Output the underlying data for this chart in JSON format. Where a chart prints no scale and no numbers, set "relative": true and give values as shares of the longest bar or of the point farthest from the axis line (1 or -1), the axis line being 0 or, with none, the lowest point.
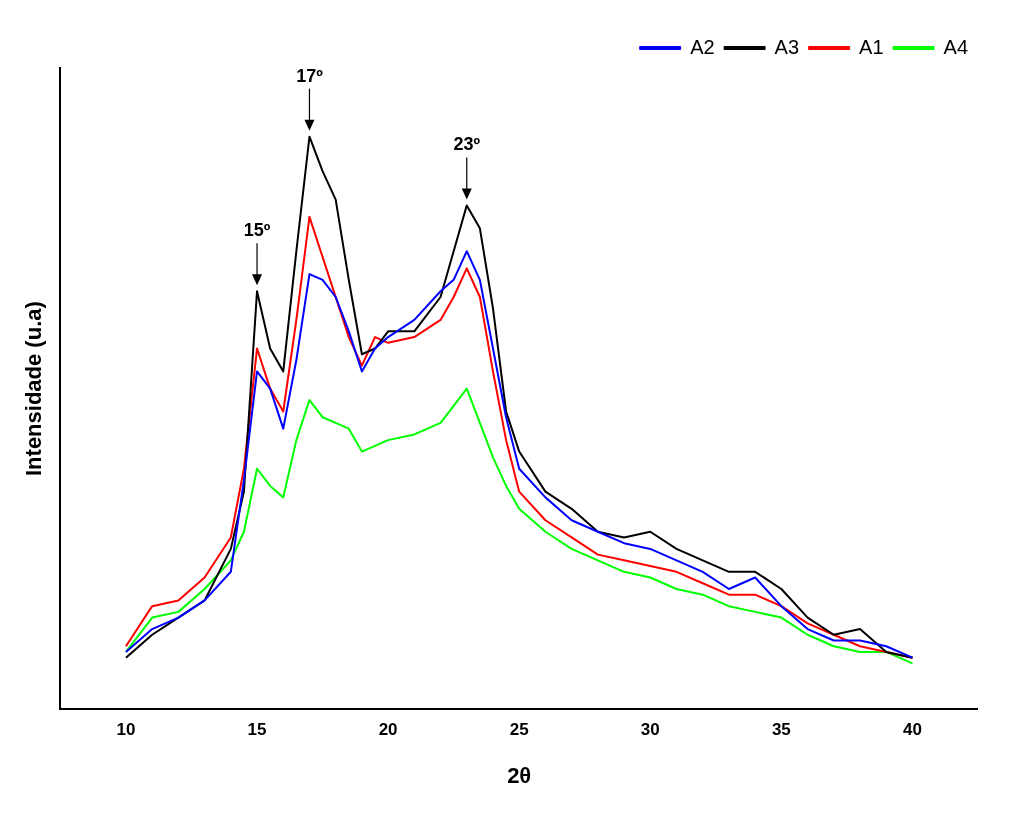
{
  "chart_data": {
    "type": "line",
    "xlabel": "2θ",
    "ylabel": "Intensidade (u.a)",
    "relative": true,
    "xlim": [
      7.5,
      42.5
    ],
    "xticks": [
      10,
      15,
      20,
      25,
      30,
      35,
      40
    ],
    "legend": "top right",
    "marker": "none",
    "line_style": "solid",
    "grid": false,
    "x": [
      10,
      11,
      12,
      13,
      14,
      14.5,
      15,
      15.5,
      16,
      16.5,
      17,
      17.5,
      18,
      18.5,
      19,
      19.5,
      20,
      21,
      22,
      22.5,
      23,
      23.5,
      24,
      24.5,
      25,
      26,
      27,
      28,
      29,
      30,
      31,
      32,
      33,
      34,
      35,
      36,
      37,
      38,
      39,
      40
    ],
    "series": [
      {
        "name": "A2",
        "color": "#0000ff",
        "values": [
          0.1,
          0.14,
          0.16,
          0.19,
          0.24,
          0.4,
          0.59,
          0.56,
          0.49,
          0.61,
          0.76,
          0.75,
          0.72,
          0.66,
          0.59,
          0.63,
          0.65,
          0.68,
          0.73,
          0.75,
          0.8,
          0.75,
          0.63,
          0.51,
          0.42,
          0.37,
          0.33,
          0.31,
          0.29,
          0.28,
          0.26,
          0.24,
          0.21,
          0.23,
          0.18,
          0.14,
          0.12,
          0.12,
          0.11,
          0.09
        ]
      },
      {
        "name": "A3",
        "color": "#000000",
        "values": [
          0.09,
          0.13,
          0.16,
          0.19,
          0.28,
          0.38,
          0.73,
          0.63,
          0.59,
          0.8,
          1.0,
          0.94,
          0.89,
          0.75,
          0.62,
          0.63,
          0.66,
          0.66,
          0.72,
          0.8,
          0.88,
          0.84,
          0.7,
          0.52,
          0.45,
          0.38,
          0.35,
          0.31,
          0.3,
          0.31,
          0.28,
          0.26,
          0.24,
          0.24,
          0.21,
          0.16,
          0.13,
          0.14,
          0.1,
          0.09
        ]
      },
      {
        "name": "A1",
        "color": "#ff0000",
        "values": [
          0.11,
          0.18,
          0.19,
          0.23,
          0.3,
          0.42,
          0.63,
          0.56,
          0.52,
          0.68,
          0.86,
          0.79,
          0.72,
          0.65,
          0.6,
          0.65,
          0.64,
          0.65,
          0.68,
          0.72,
          0.77,
          0.72,
          0.59,
          0.47,
          0.38,
          0.33,
          0.3,
          0.27,
          0.26,
          0.25,
          0.24,
          0.22,
          0.2,
          0.2,
          0.18,
          0.15,
          0.13,
          0.11,
          0.1,
          0.09
        ]
      },
      {
        "name": "A4",
        "color": "#00ff00",
        "values": [
          0.1,
          0.16,
          0.17,
          0.21,
          0.26,
          0.31,
          0.42,
          0.39,
          0.37,
          0.47,
          0.54,
          0.51,
          0.5,
          0.49,
          0.45,
          0.46,
          0.47,
          0.48,
          0.5,
          0.53,
          0.56,
          0.5,
          0.44,
          0.39,
          0.35,
          0.31,
          0.28,
          0.26,
          0.24,
          0.23,
          0.21,
          0.2,
          0.18,
          0.17,
          0.16,
          0.13,
          0.11,
          0.1,
          0.1,
          0.08
        ]
      }
    ],
    "annotations": [
      {
        "text": "15º",
        "x": 15,
        "y": 0.73
      },
      {
        "text": "17º",
        "x": 17,
        "y": 1.0
      },
      {
        "text": "23º",
        "x": 23,
        "y": 0.88
      }
    ]
  }
}
